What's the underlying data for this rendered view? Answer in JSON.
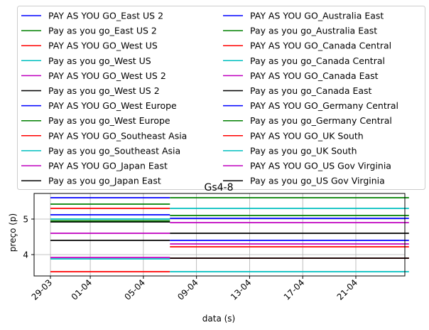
{
  "chart_data": {
    "type": "line",
    "title": "Gs4-8",
    "xlabel": "data (s)",
    "ylabel": "preço (p)",
    "x_ticks": [
      "29-03",
      "01-04",
      "05-04",
      "09-04",
      "13-04",
      "17-04",
      "21-04"
    ],
    "y_ticks": [
      "4",
      "5"
    ],
    "ylim": [
      3.4,
      5.72
    ],
    "grid": true,
    "legend": "top, two columns",
    "series": [
      {
        "name": "PAY AS YOU GO_East US 2",
        "color": "#0000ff",
        "x": [
          "29-03",
          "07-04"
        ],
        "y": [
          5.6,
          5.6
        ]
      },
      {
        "name": "Pay as you go_East US 2",
        "color": "#008000",
        "x": [
          "29-03",
          "07-04"
        ],
        "y": [
          5.42,
          5.42
        ]
      },
      {
        "name": "PAY AS YOU GO_West US",
        "color": "#ff0000",
        "x": [
          "29-03",
          "07-04"
        ],
        "y": [
          5.3,
          5.3
        ]
      },
      {
        "name": "Pay as you go_West US",
        "color": "#00bfbf",
        "x": [
          "29-03",
          "07-04"
        ],
        "y": [
          5.0,
          5.0
        ]
      },
      {
        "name": "PAY AS YOU GO_West US 2",
        "color": "#bf00bf",
        "x": [
          "29-03",
          "07-04"
        ],
        "y": [
          4.6,
          4.6
        ]
      },
      {
        "name": "Pay as you go_West US 2",
        "color": "#000000",
        "x": [
          "29-03",
          "07-04"
        ],
        "y": [
          4.92,
          4.92
        ]
      },
      {
        "name": "PAY AS YOU GO_West Europe",
        "color": "#0000ff",
        "x": [
          "29-03",
          "07-04"
        ],
        "y": [
          5.12,
          5.12
        ]
      },
      {
        "name": "Pay as you go_West Europe",
        "color": "#008000",
        "x": [
          "29-03",
          "07-04"
        ],
        "y": [
          4.95,
          4.95
        ]
      },
      {
        "name": "PAY AS YOU GO_Southeast Asia",
        "color": "#ff0000",
        "x": [
          "29-03",
          "07-04"
        ],
        "y": [
          3.52,
          3.52
        ]
      },
      {
        "name": "Pay as you go_Southeast Asia",
        "color": "#00bfbf",
        "x": [
          "29-03",
          "07-04"
        ],
        "y": [
          3.88,
          3.88
        ]
      },
      {
        "name": "PAY AS YOU GO_Japan East",
        "color": "#bf00bf",
        "x": [
          "29-03",
          "07-04"
        ],
        "y": [
          3.92,
          3.92
        ]
      },
      {
        "name": "Pay as you go_Japan East",
        "color": "#000000",
        "x": [
          "29-03",
          "07-04"
        ],
        "y": [
          4.4,
          4.4
        ]
      },
      {
        "name": "PAY AS YOU GO_Australia East",
        "color": "#0000ff",
        "x": [
          "07-04",
          "25-04"
        ],
        "y": [
          5.02,
          5.02
        ]
      },
      {
        "name": "Pay as you go_Australia East",
        "color": "#008000",
        "x": [
          "07-04",
          "25-04"
        ],
        "y": [
          5.6,
          5.6
        ]
      },
      {
        "name": "PAY AS YOU GO_Canada Central",
        "color": "#ff0000",
        "x": [
          "07-04",
          "25-04"
        ],
        "y": [
          4.22,
          4.22
        ]
      },
      {
        "name": "Pay as you go_Canada Central",
        "color": "#00bfbf",
        "x": [
          "07-04",
          "25-04"
        ],
        "y": [
          5.3,
          5.3
        ]
      },
      {
        "name": "PAY AS YOU GO_Canada East",
        "color": "#bf00bf",
        "x": [
          "07-04",
          "25-04"
        ],
        "y": [
          4.9,
          4.9
        ]
      },
      {
        "name": "Pay as you go_Canada East",
        "color": "#000000",
        "x": [
          "07-04",
          "25-04"
        ],
        "y": [
          4.6,
          4.6
        ]
      },
      {
        "name": "PAY AS YOU GO_Germany Central",
        "color": "#0000ff",
        "x": [
          "07-04",
          "25-04"
        ],
        "y": [
          4.4,
          4.4
        ]
      },
      {
        "name": "Pay as you go_Germany Central",
        "color": "#008000",
        "x": [
          "07-04",
          "25-04"
        ],
        "y": [
          5.1,
          5.1
        ]
      },
      {
        "name": "PAY AS YOU GO_UK South",
        "color": "#ff0000",
        "x": [
          "07-04",
          "25-04"
        ],
        "y": [
          3.9,
          3.9
        ]
      },
      {
        "name": "Pay as you go_UK South",
        "color": "#00bfbf",
        "x": [
          "07-04",
          "25-04"
        ],
        "y": [
          3.52,
          3.52
        ]
      },
      {
        "name": "PAY AS YOU GO_US Gov Virginia",
        "color": "#bf00bf",
        "x": [
          "07-04",
          "25-04"
        ],
        "y": [
          4.3,
          4.3
        ]
      },
      {
        "name": "Pay as you go_US Gov Virginia",
        "color": "#000000",
        "x": [
          "07-04",
          "25-04"
        ],
        "y": [
          3.9,
          3.9
        ]
      }
    ]
  }
}
